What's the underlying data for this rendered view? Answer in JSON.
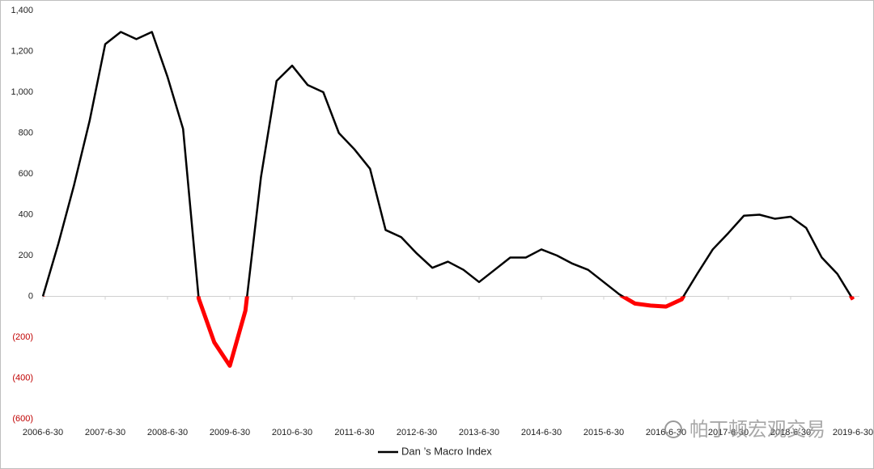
{
  "chart_data": {
    "type": "line",
    "categories": [
      "2006-6-30",
      null,
      null,
      null,
      "2007-6-30",
      null,
      null,
      null,
      "2008-6-30",
      null,
      null,
      null,
      "2009-6-30",
      null,
      null,
      null,
      "2010-6-30",
      null,
      null,
      null,
      "2011-6-30",
      null,
      null,
      null,
      "2012-6-30",
      null,
      null,
      null,
      "2013-6-30",
      null,
      null,
      null,
      "2014-6-30",
      null,
      null,
      null,
      "2015-6-30",
      null,
      null,
      null,
      "2016-6-30",
      null,
      null,
      null,
      "2017-6-30",
      null,
      null,
      null,
      "2018-6-30",
      null,
      null,
      null,
      "2019-6-30"
    ],
    "series": [
      {
        "name": "Dan ’s Macro Index",
        "color": "#000000",
        "negative_color": "#ff0000",
        "values": [
          0,
          260,
          545,
          860,
          1235,
          1295,
          1260,
          1295,
          1075,
          820,
          -10,
          -225,
          -340,
          -70,
          585,
          1055,
          1130,
          1035,
          1000,
          800,
          720,
          625,
          325,
          290,
          210,
          140,
          170,
          130,
          70,
          130,
          190,
          190,
          230,
          200,
          160,
          130,
          70,
          10,
          -35,
          -45,
          -50,
          -15,
          110,
          230,
          310,
          395,
          400,
          380,
          390,
          335,
          190,
          110,
          -15
        ]
      }
    ],
    "ylim": [
      -600,
      1400
    ],
    "yticks": [
      {
        "value": 1400,
        "label": "1,400"
      },
      {
        "value": 1200,
        "label": "1,200"
      },
      {
        "value": 1000,
        "label": "1,000"
      },
      800,
      600,
      400,
      200,
      0,
      {
        "value": -200,
        "label": "(200)"
      },
      {
        "value": -400,
        "label": "(400)"
      },
      {
        "value": -600,
        "label": "(600)"
      }
    ],
    "negative_tick_color": "#c00000",
    "legend": "bottom",
    "watermark": "帕丁顿宏观交易"
  }
}
